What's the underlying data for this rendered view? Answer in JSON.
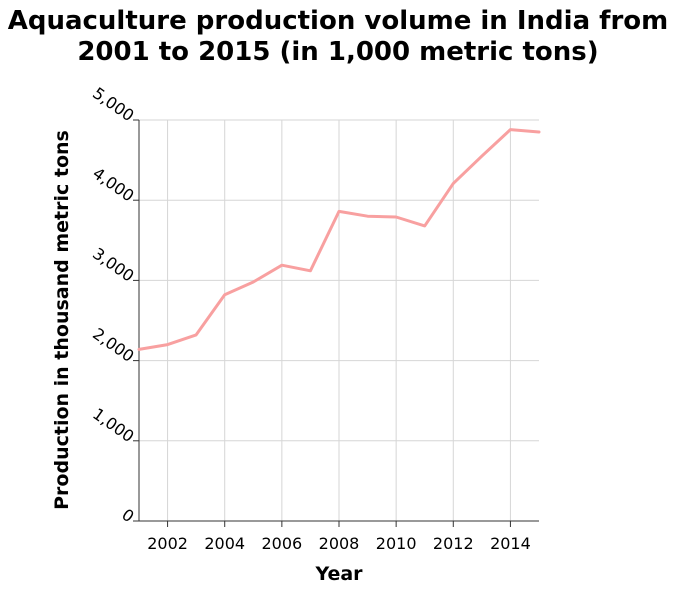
{
  "chart_data": {
    "type": "line",
    "title": "Aquaculture production volume in India from 2001 to 2015 (in 1,000 metric tons)",
    "title_lines": [
      "Aquaculture production volume in India from",
      "2001 to 2015 (in 1,000 metric tons)"
    ],
    "xlabel": "Year",
    "ylabel": "Production in thousand metric tons",
    "x": [
      2001,
      2002,
      2003,
      2004,
      2005,
      2006,
      2007,
      2008,
      2009,
      2010,
      2011,
      2012,
      2013,
      2014,
      2015
    ],
    "series": [
      {
        "values": [
          2140,
          2200,
          2320,
          2820,
          2980,
          3190,
          3120,
          3860,
          3800,
          3790,
          3680,
          4210,
          4550,
          4880,
          4850
        ],
        "color": "#f8a0a0"
      }
    ],
    "xlim": [
      2001,
      2015
    ],
    "ylim": [
      0,
      5000
    ],
    "x_ticks": [
      2002,
      2004,
      2006,
      2008,
      2010,
      2012,
      2014
    ],
    "x_tick_labels": [
      "2002",
      "2004",
      "2006",
      "2008",
      "2010",
      "2012",
      "2014"
    ],
    "y_ticks": [
      0,
      1000,
      2000,
      3000,
      4000,
      5000
    ],
    "y_tick_labels": [
      "0",
      "1,000",
      "2,000",
      "3,000",
      "4,000",
      "5,000"
    ],
    "grid": true,
    "legend": "none"
  }
}
